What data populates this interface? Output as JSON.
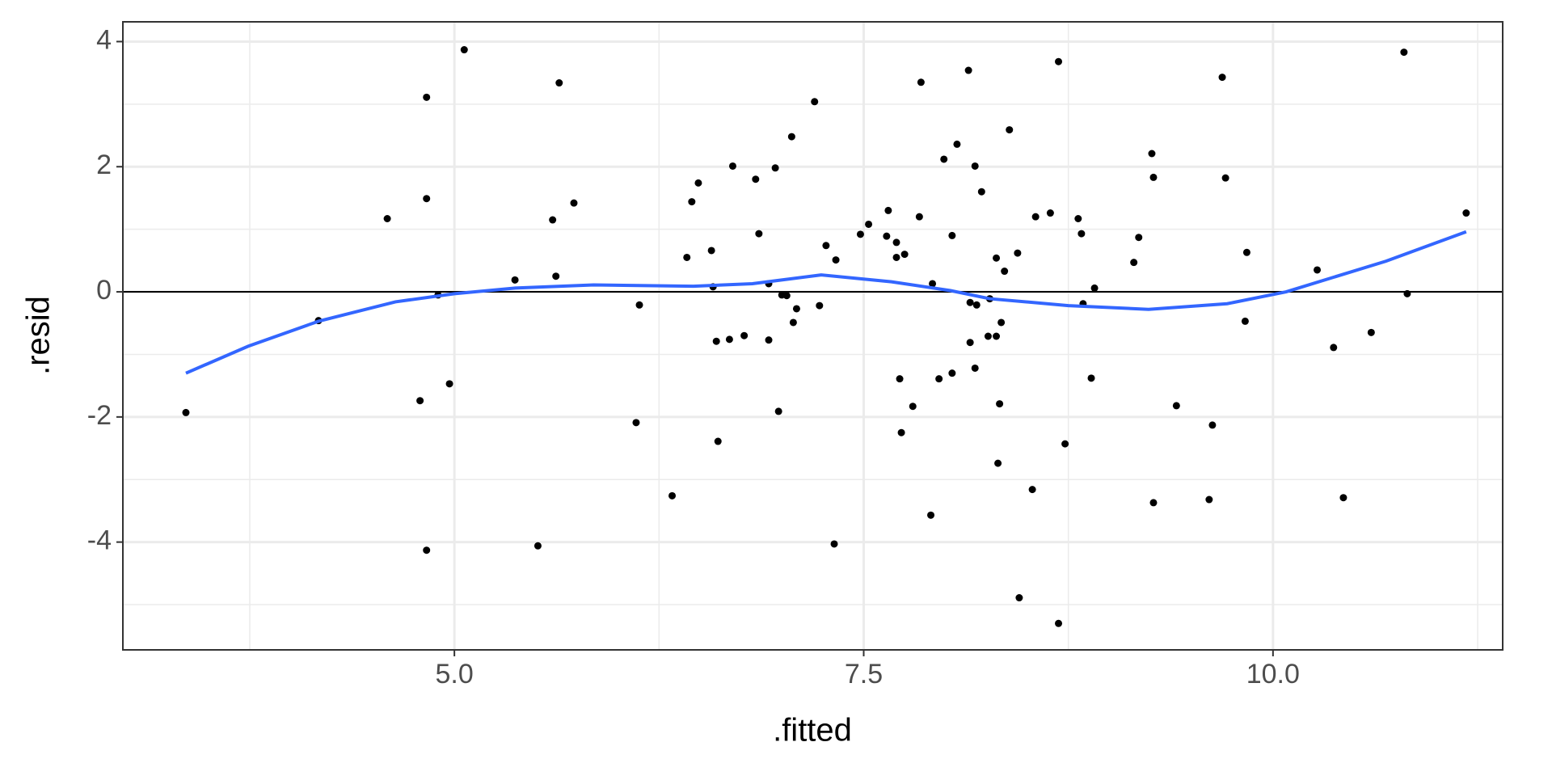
{
  "chart_data": {
    "type": "scatter",
    "x_label": ".fitted",
    "y_label": ".resid",
    "x": [
      3.36,
      4.17,
      4.59,
      4.83,
      4.83,
      4.79,
      4.83,
      4.9,
      4.97,
      5.06,
      5.37,
      5.51,
      5.6,
      5.62,
      5.64,
      5.73,
      6.11,
      6.13,
      6.33,
      6.42,
      6.45,
      6.49,
      6.57,
      6.58,
      6.6,
      6.61,
      6.68,
      6.7,
      6.77,
      6.84,
      6.86,
      6.92,
      6.92,
      6.96,
      6.98,
      7.0,
      7.03,
      7.06,
      7.07,
      7.09,
      7.2,
      7.23,
      7.27,
      7.32,
      7.33,
      7.48,
      7.53,
      7.64,
      7.65,
      7.7,
      7.7,
      7.72,
      7.73,
      7.75,
      7.8,
      7.84,
      7.85,
      7.91,
      7.92,
      7.96,
      7.99,
      8.04,
      8.04,
      8.07,
      8.14,
      8.15,
      8.15,
      8.18,
      8.18,
      8.19,
      8.22,
      8.26,
      8.27,
      8.31,
      8.31,
      8.32,
      8.33,
      8.34,
      8.36,
      8.39,
      8.44,
      8.45,
      8.53,
      8.55,
      8.64,
      8.69,
      8.69,
      8.73,
      8.81,
      8.83,
      8.84,
      8.89,
      8.91,
      9.15,
      9.18,
      9.26,
      9.27,
      9.27,
      9.41,
      9.61,
      9.63,
      9.69,
      9.71,
      9.83,
      9.84,
      10.27,
      10.37,
      10.43,
      10.6,
      10.8,
      10.82,
      11.18
    ],
    "y": [
      -1.93,
      -0.46,
      1.17,
      3.11,
      1.49,
      -1.74,
      -4.13,
      -0.05,
      -1.47,
      3.87,
      0.19,
      -4.06,
      1.15,
      0.25,
      3.34,
      1.42,
      -2.09,
      -0.21,
      -3.26,
      0.55,
      1.44,
      1.74,
      0.66,
      0.08,
      -0.79,
      -2.39,
      -0.76,
      2.01,
      -0.7,
      1.8,
      0.93,
      0.13,
      -0.77,
      1.98,
      -1.91,
      -0.05,
      -0.06,
      2.48,
      -0.49,
      -0.27,
      3.04,
      -0.22,
      0.74,
      -4.03,
      0.51,
      0.92,
      1.08,
      0.89,
      1.3,
      0.79,
      0.55,
      -1.39,
      -2.25,
      0.6,
      -1.83,
      1.2,
      3.35,
      -3.57,
      0.13,
      -1.39,
      2.12,
      0.9,
      -1.3,
      2.36,
      3.54,
      -0.81,
      -0.17,
      2.01,
      -1.22,
      -0.21,
      1.6,
      -0.71,
      -0.11,
      0.54,
      -0.71,
      -2.74,
      -1.79,
      -0.49,
      0.33,
      2.59,
      0.62,
      -4.89,
      -3.16,
      1.2,
      1.26,
      3.68,
      -5.3,
      -2.43,
      1.17,
      0.93,
      -0.19,
      -1.38,
      0.06,
      0.47,
      0.87,
      2.21,
      1.83,
      -3.37,
      -1.82,
      -3.32,
      -2.13,
      3.43,
      1.82,
      -0.47,
      0.63,
      0.35,
      -0.89,
      -3.29,
      -0.65,
      3.83,
      -0.03,
      1.26
    ],
    "color": "#000000",
    "smooth": {
      "x": [
        3.36,
        3.74,
        4.17,
        4.64,
        5.0,
        5.37,
        5.85,
        6.46,
        6.82,
        7.24,
        7.67,
        8.03,
        8.27,
        8.75,
        9.24,
        9.72,
        10.08,
        10.69,
        11.18
      ],
      "y": [
        -1.3,
        -0.87,
        -0.47,
        -0.16,
        -0.03,
        0.06,
        0.11,
        0.09,
        0.13,
        0.27,
        0.16,
        0.02,
        -0.11,
        -0.22,
        -0.28,
        -0.19,
        0.0,
        0.49,
        0.96
      ],
      "color": "#3366ff"
    },
    "hline": 0,
    "xlim": [
      2.975,
      11.403
    ],
    "ylim": [
      -5.723,
      4.316
    ],
    "xticks": [
      {
        "value": 5,
        "label": "5.0"
      },
      {
        "value": 7.5,
        "label": "7.5"
      },
      {
        "value": 10,
        "label": "10.0"
      }
    ],
    "yticks": [
      -4,
      -2,
      0,
      2,
      4
    ],
    "x_minor_grid": [
      3.75,
      6.25,
      8.75,
      11.25
    ],
    "y_minor_grid": [
      -5,
      -3,
      -1,
      1,
      3
    ],
    "grid": true
  }
}
